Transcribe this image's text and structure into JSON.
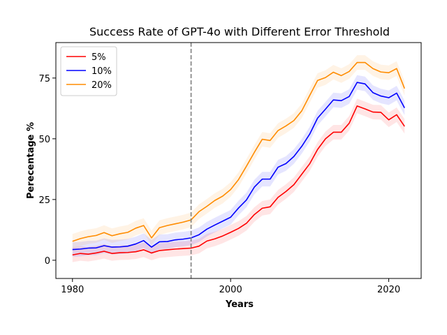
{
  "chart_data": {
    "type": "line",
    "title": "Success Rate of GPT-4o with Different Error Threshold",
    "xlabel": "Years",
    "ylabel": "Perecentage %",
    "xlim": [
      1977.9,
      2024.1
    ],
    "ylim": [
      -7.5,
      89.6
    ],
    "xticks": [
      1980,
      2000,
      2020
    ],
    "yticks": [
      0,
      25,
      50,
      75
    ],
    "vline_x": 1995,
    "legend_position": "top-left",
    "band_halfwidth": 3,
    "x": [
      1980,
      1981,
      1982,
      1983,
      1984,
      1985,
      1986,
      1987,
      1988,
      1989,
      1990,
      1991,
      1992,
      1993,
      1994,
      1995,
      1996,
      1997,
      1998,
      1999,
      2000,
      2001,
      2002,
      2003,
      2004,
      2005,
      2006,
      2007,
      2008,
      2009,
      2010,
      2011,
      2012,
      2013,
      2014,
      2015,
      2016,
      2017,
      2018,
      2019,
      2020,
      2021,
      2022
    ],
    "series": [
      {
        "name": "5%",
        "color": "#ff0000",
        "values": [
          2.2,
          2.8,
          2.5,
          3.0,
          3.7,
          2.8,
          3.1,
          3.2,
          3.5,
          4.3,
          3.0,
          4.0,
          4.3,
          4.6,
          4.8,
          5.0,
          5.8,
          7.9,
          8.8,
          10.0,
          11.5,
          13.1,
          15.2,
          18.8,
          21.4,
          22.0,
          25.9,
          28.3,
          31.1,
          35.4,
          39.7,
          45.6,
          50.0,
          52.7,
          52.7,
          56.4,
          63.5,
          62.3,
          61.0,
          60.9,
          57.8,
          59.9,
          55.1
        ]
      },
      {
        "name": "10%",
        "color": "#0000ff",
        "values": [
          4.4,
          4.6,
          5.0,
          5.1,
          6.0,
          5.4,
          5.5,
          5.8,
          6.7,
          8.1,
          5.4,
          7.6,
          7.7,
          8.4,
          8.7,
          9.2,
          10.5,
          12.8,
          14.5,
          16.1,
          17.7,
          21.5,
          24.8,
          30.1,
          33.4,
          33.4,
          38.3,
          39.8,
          42.7,
          46.9,
          51.9,
          58.5,
          62.2,
          66.0,
          65.7,
          67.4,
          73.2,
          72.6,
          69.0,
          67.6,
          66.9,
          68.8,
          62.7
        ]
      },
      {
        "name": "20%",
        "color": "#ff8c00",
        "values": [
          7.8,
          8.9,
          9.7,
          10.2,
          11.4,
          10.1,
          10.9,
          11.5,
          13.2,
          14.3,
          9.2,
          13.4,
          14.3,
          15.0,
          15.7,
          16.6,
          20.0,
          22.2,
          24.6,
          26.4,
          29.1,
          33.2,
          38.7,
          44.4,
          49.8,
          49.3,
          53.4,
          55.3,
          57.5,
          61.5,
          67.8,
          74.0,
          75.2,
          77.4,
          76.0,
          77.7,
          81.4,
          81.4,
          78.9,
          77.5,
          77.2,
          78.9,
          70.7
        ]
      }
    ]
  }
}
